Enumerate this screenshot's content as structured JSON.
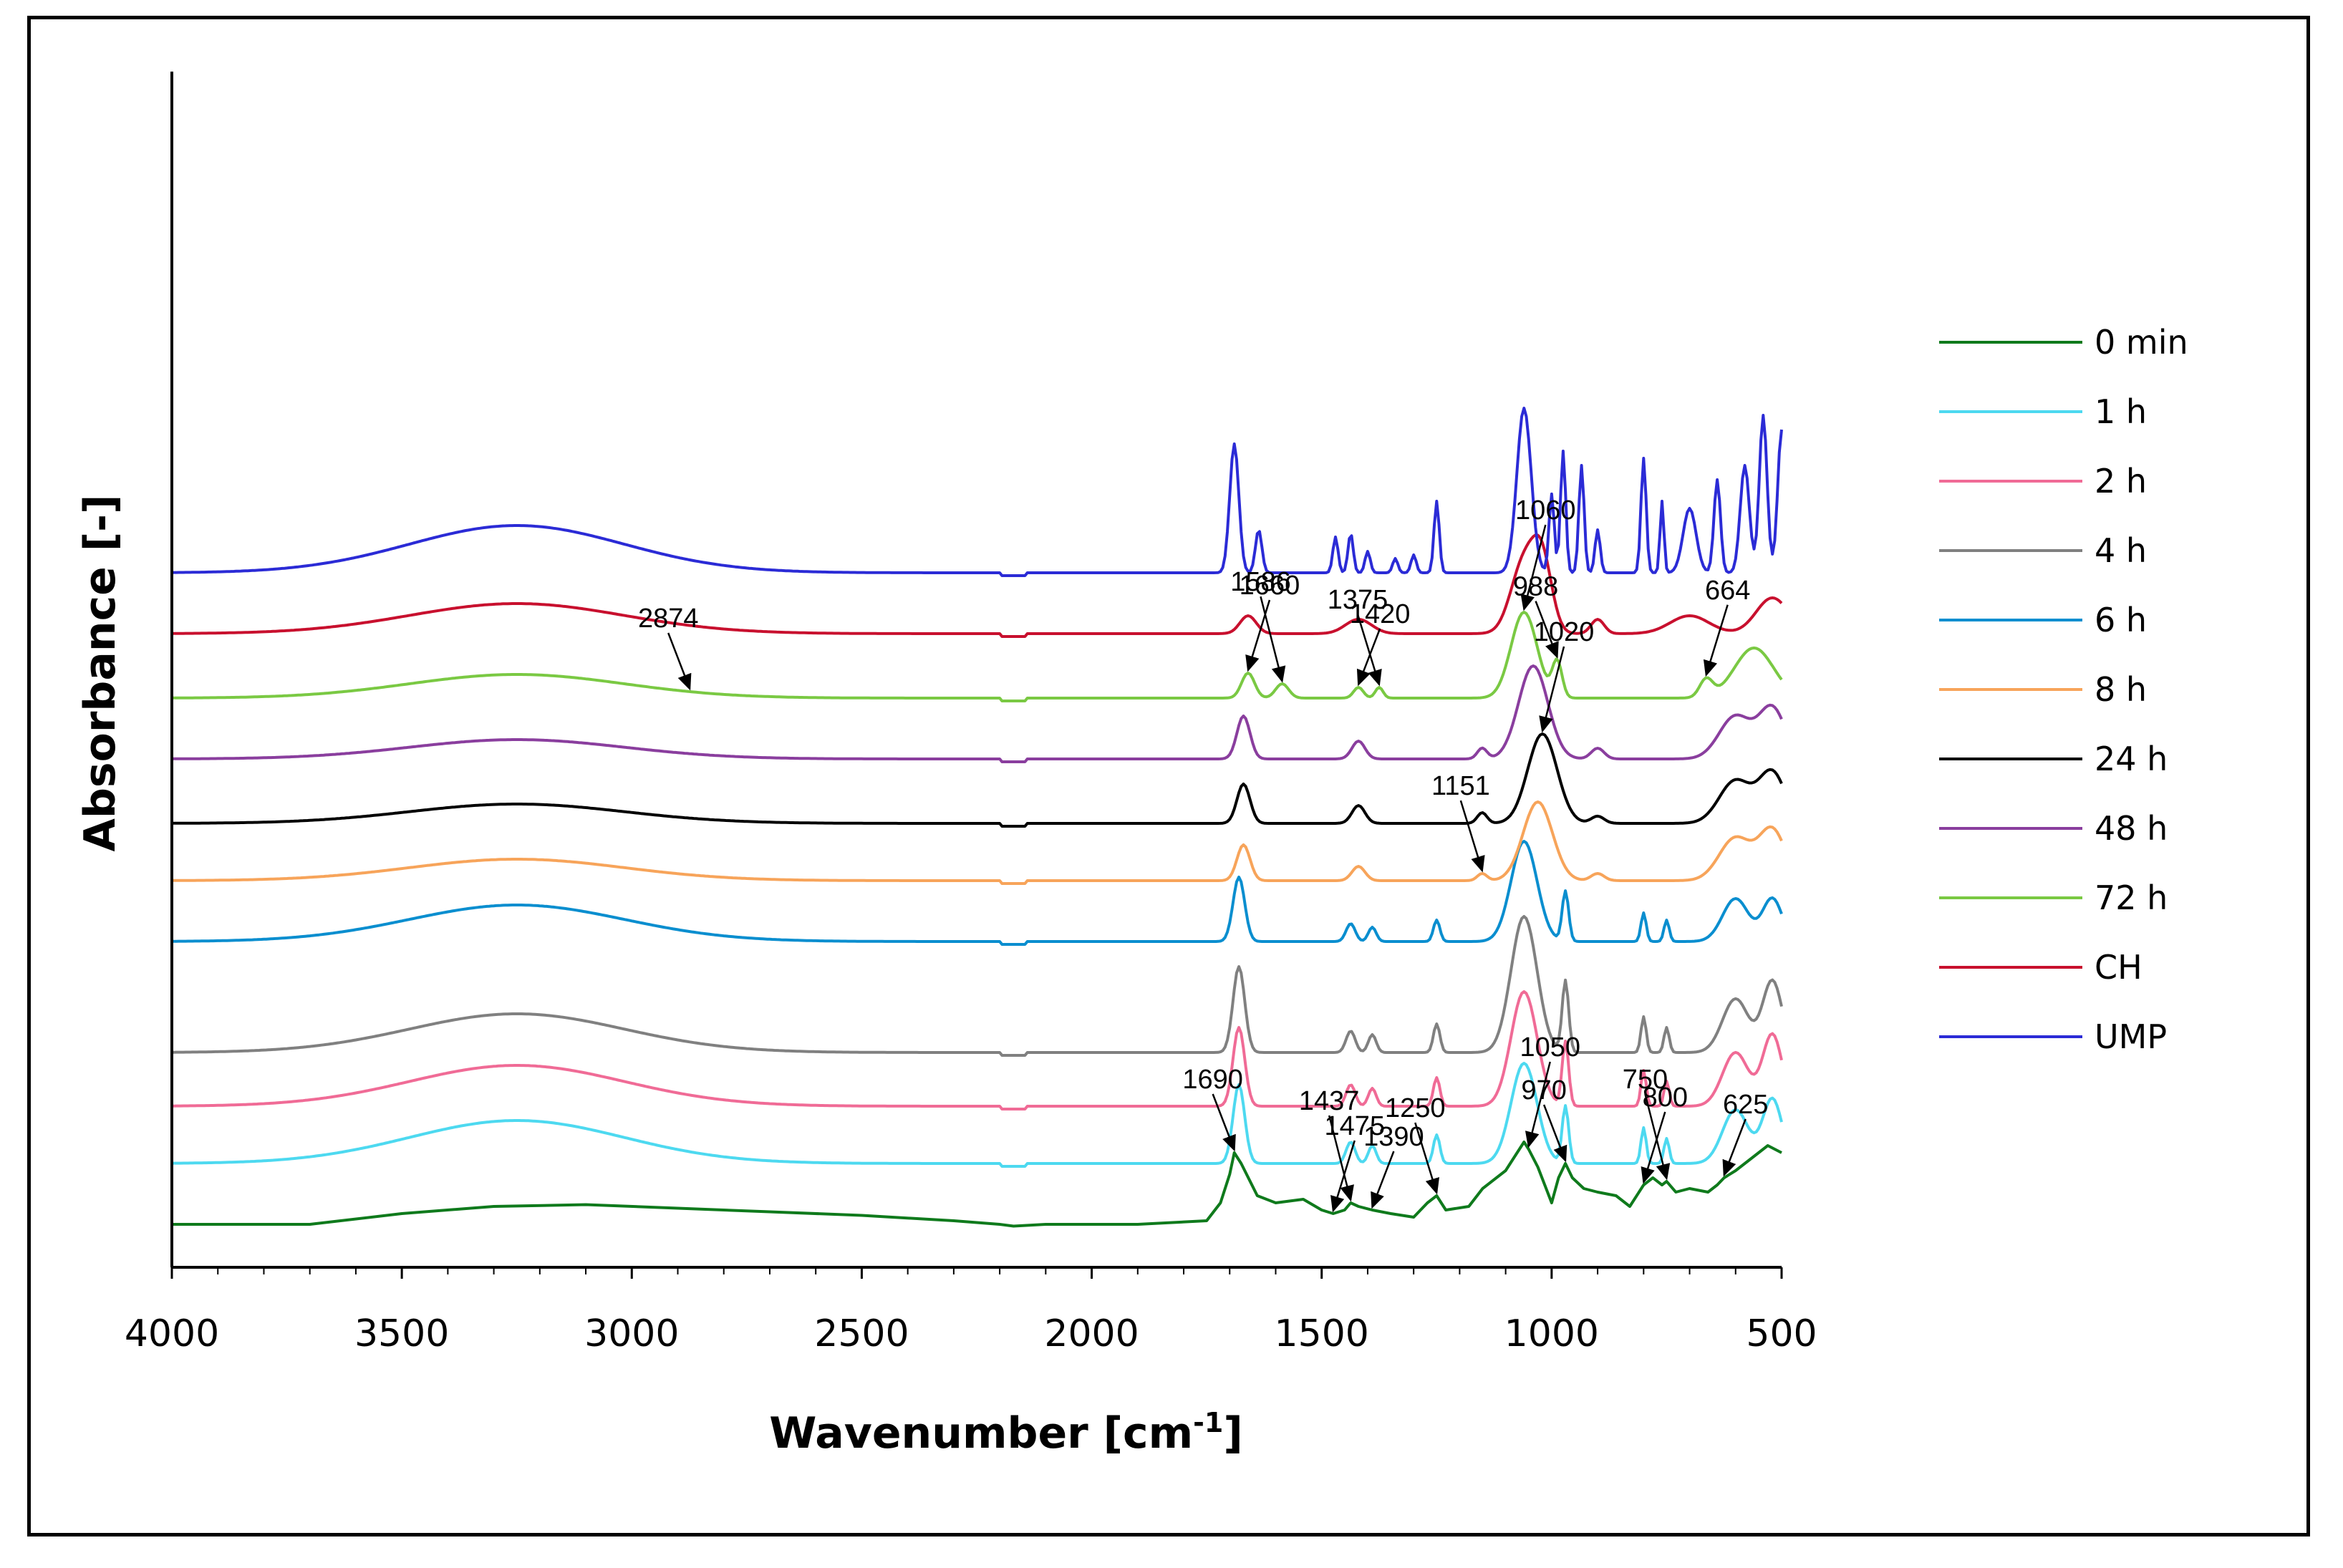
{
  "chart_data": {
    "type": "line",
    "title": "",
    "xlabel": "Wavenumber [cm",
    "xlabel_sup": "-1",
    "xlabel_close": "]",
    "ylabel": "Absorbance [-]",
    "xlim": [
      4000,
      500
    ],
    "x_reversed": true,
    "x_ticks": [
      4000,
      3500,
      3000,
      2500,
      2000,
      1500,
      1000,
      500
    ],
    "y_ticks": false,
    "grid": false,
    "legend_position": "right",
    "series": [
      {
        "name": "0 min",
        "color": "#0f7a1c",
        "offset": 0.0,
        "points": [
          [
            4000,
            0.0
          ],
          [
            3700,
            0.0
          ],
          [
            3500,
            0.03
          ],
          [
            3300,
            0.05
          ],
          [
            3100,
            0.055
          ],
          [
            2900,
            0.045
          ],
          [
            2700,
            0.035
          ],
          [
            2500,
            0.025
          ],
          [
            2300,
            0.01
          ],
          [
            2200,
            0.0
          ],
          [
            2170,
            -0.005
          ],
          [
            2100,
            0.0
          ],
          [
            1900,
            0.0
          ],
          [
            1750,
            0.01
          ],
          [
            1720,
            0.06
          ],
          [
            1700,
            0.14
          ],
          [
            1690,
            0.2
          ],
          [
            1675,
            0.17
          ],
          [
            1640,
            0.08
          ],
          [
            1600,
            0.06
          ],
          [
            1540,
            0.07
          ],
          [
            1500,
            0.04
          ],
          [
            1475,
            0.03
          ],
          [
            1450,
            0.04
          ],
          [
            1437,
            0.06
          ],
          [
            1420,
            0.05
          ],
          [
            1390,
            0.04
          ],
          [
            1350,
            0.03
          ],
          [
            1300,
            0.02
          ],
          [
            1270,
            0.06
          ],
          [
            1250,
            0.08
          ],
          [
            1230,
            0.04
          ],
          [
            1180,
            0.05
          ],
          [
            1150,
            0.1
          ],
          [
            1100,
            0.15
          ],
          [
            1060,
            0.23
          ],
          [
            1050,
            0.21
          ],
          [
            1030,
            0.16
          ],
          [
            1000,
            0.06
          ],
          [
            985,
            0.13
          ],
          [
            970,
            0.17
          ],
          [
            955,
            0.13
          ],
          [
            930,
            0.1
          ],
          [
            900,
            0.09
          ],
          [
            860,
            0.08
          ],
          [
            830,
            0.05
          ],
          [
            800,
            0.11
          ],
          [
            780,
            0.13
          ],
          [
            760,
            0.11
          ],
          [
            750,
            0.12
          ],
          [
            730,
            0.09
          ],
          [
            700,
            0.1
          ],
          [
            660,
            0.09
          ],
          [
            640,
            0.11
          ],
          [
            625,
            0.13
          ],
          [
            600,
            0.15
          ],
          [
            560,
            0.19
          ],
          [
            530,
            0.22
          ],
          [
            500,
            0.2
          ]
        ]
      },
      {
        "name": "1 h",
        "color": "#4dd9f0",
        "offset": 0.17
      },
      {
        "name": "2 h",
        "color": "#f06b96",
        "offset": 0.33
      },
      {
        "name": "4 h",
        "color": "#808080",
        "offset": 0.48
      },
      {
        "name": "6 h",
        "color": "#0a8ecf",
        "offset": 0.79
      },
      {
        "name": "8 h",
        "color": "#f7a45a",
        "offset": 0.96
      },
      {
        "name": "24 h",
        "color": "#000000",
        "offset": 1.12
      },
      {
        "name": "48 h",
        "color": "#8a3e9e",
        "offset": 1.3
      },
      {
        "name": "72 h",
        "color": "#7ac943",
        "offset": 1.47
      },
      {
        "name": "CH",
        "color": "#c8102e",
        "offset": 1.65
      },
      {
        "name": "UMP",
        "color": "#2b2bd6",
        "offset": 1.82
      }
    ],
    "annotations": [
      {
        "label": "1690",
        "x": 1690,
        "series": "0 min"
      },
      {
        "label": "1475",
        "x": 1475,
        "series": "0 min"
      },
      {
        "label": "1437",
        "x": 1437,
        "series": "0 min"
      },
      {
        "label": "1390",
        "x": 1390,
        "series": "0 min"
      },
      {
        "label": "1250",
        "x": 1250,
        "series": "0 min"
      },
      {
        "label": "1050",
        "x": 1050,
        "series": "0 min"
      },
      {
        "label": "970",
        "x": 970,
        "series": "0 min"
      },
      {
        "label": "800",
        "x": 800,
        "series": "0 min"
      },
      {
        "label": "750",
        "x": 750,
        "series": "0 min"
      },
      {
        "label": "625",
        "x": 625,
        "series": "0 min"
      },
      {
        "label": "1151",
        "x": 1151,
        "series": "8 h"
      },
      {
        "label": "1020",
        "x": 1020,
        "series": "24 h"
      },
      {
        "label": "2874",
        "x": 2874,
        "series": "72 h"
      },
      {
        "label": "1660",
        "x": 1660,
        "series": "72 h"
      },
      {
        "label": "1586",
        "x": 1586,
        "series": "72 h"
      },
      {
        "label": "1420",
        "x": 1420,
        "series": "72 h"
      },
      {
        "label": "1375",
        "x": 1375,
        "series": "72 h"
      },
      {
        "label": "1060",
        "x": 1060,
        "series": "72 h"
      },
      {
        "label": "988",
        "x": 988,
        "series": "72 h"
      },
      {
        "label": "664",
        "x": 664,
        "series": "72 h"
      }
    ]
  }
}
